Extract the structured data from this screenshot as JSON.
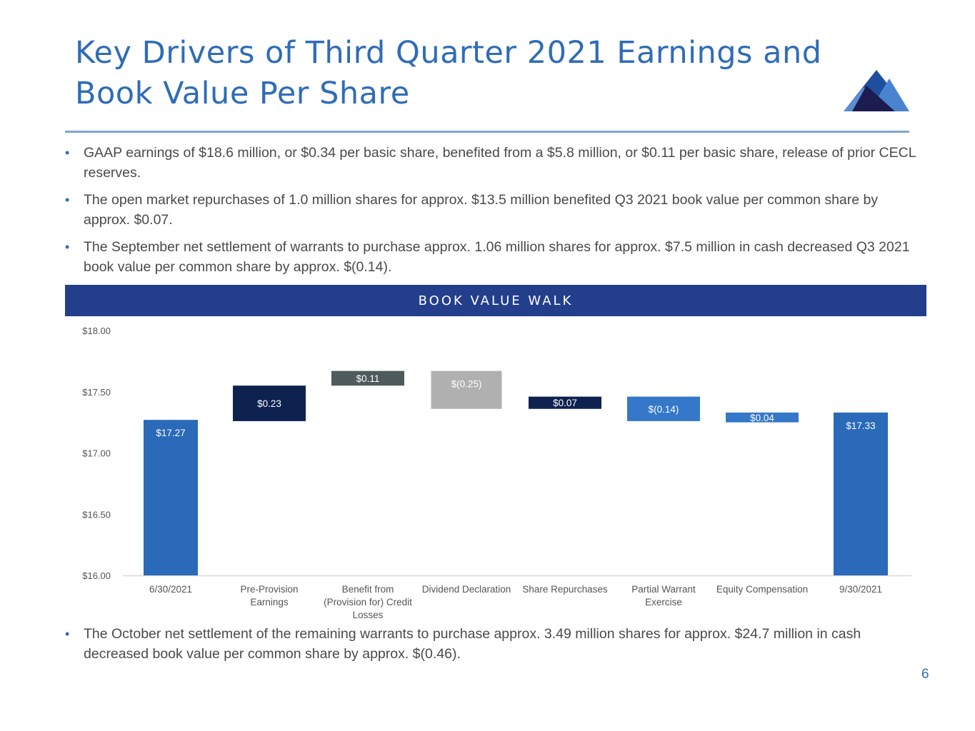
{
  "title": "Key Drivers of Third Quarter 2021 Earnings and Book Value Per Share",
  "logo": {
    "icon": "mountain-logo-icon",
    "colors": [
      "#1f4f9c",
      "#3d7cc9",
      "#1c1c50",
      "#5b8fd4"
    ]
  },
  "bullets": [
    "GAAP earnings of $18.6 million, or $0.34 per basic share, benefited from a $5.8 million, or $0.11 per basic share, release of prior CECL reserves.",
    "The open market repurchases of 1.0 million shares for approx. $13.5 million benefited Q3 2021 book value per common share by approx. $0.07.",
    "The September net settlement of warrants to purchase approx. 1.06 million shares for approx. $7.5 million in cash decreased Q3 2021 book value per common share by approx. $(0.14)."
  ],
  "banner": "BOOK VALUE WALK",
  "bottom_bullet": "The October net settlement of the remaining warrants to purchase approx. 3.49 million shares for approx. $24.7 million in cash decreased book value per common share by approx. $(0.46).",
  "page_number": "6",
  "colors": {
    "title": "#2f6cb8",
    "banner": "#233f8c",
    "rule": "#7fa6d6",
    "text": "#4a4a4a"
  },
  "chart_data": {
    "type": "bar",
    "subtype": "waterfall",
    "title": "BOOK VALUE WALK",
    "xlabel": "",
    "ylabel": "",
    "ylim": [
      16.0,
      18.0
    ],
    "yticks": [
      "$16.00",
      "$16.50",
      "$17.00",
      "$17.50",
      "$18.00"
    ],
    "ytick_values": [
      16.0,
      16.5,
      17.0,
      17.5,
      18.0
    ],
    "grid": false,
    "legend": "none",
    "categories": [
      [
        "6/30/2021"
      ],
      [
        "Pre-Provision",
        "Earnings"
      ],
      [
        "Benefit from",
        "(Provision for) Credit",
        "Losses"
      ],
      [
        "Dividend Declaration"
      ],
      [
        "Share Repurchases"
      ],
      [
        "Partial Warrant",
        "Exercise"
      ],
      [
        "Equity Compensation"
      ],
      [
        "9/30/2021"
      ]
    ],
    "bars": [
      {
        "label": "$17.27",
        "value": 17.27,
        "start": 16.0,
        "end": 17.27,
        "color": "#2a6ab9",
        "label_pos": "inside-top"
      },
      {
        "label": "$0.23",
        "value": 0.23,
        "start": 17.26,
        "end": 17.55,
        "color": "#0e2250",
        "label_pos": "center"
      },
      {
        "label": "$0.11",
        "value": 0.11,
        "start": 17.55,
        "end": 17.67,
        "color": "#4e5a5c",
        "label_pos": "center"
      },
      {
        "label": "$(0.25)",
        "value": -0.25,
        "start": 17.36,
        "end": 17.67,
        "color": "#b0b0b0",
        "label_pos": "inside-top"
      },
      {
        "label": "$0.07",
        "value": 0.07,
        "start": 17.36,
        "end": 17.46,
        "color": "#0e2250",
        "label_pos": "center"
      },
      {
        "label": "$(0.14)",
        "value": -0.14,
        "start": 17.26,
        "end": 17.46,
        "color": "#3578c9",
        "label_pos": "center"
      },
      {
        "label": "$0.04",
        "value": 0.04,
        "start": 17.25,
        "end": 17.33,
        "color": "#3578c9",
        "label_pos": "center"
      },
      {
        "label": "$17.33",
        "value": 17.33,
        "start": 16.0,
        "end": 17.33,
        "color": "#2a6ab9",
        "label_pos": "inside-top"
      }
    ]
  }
}
